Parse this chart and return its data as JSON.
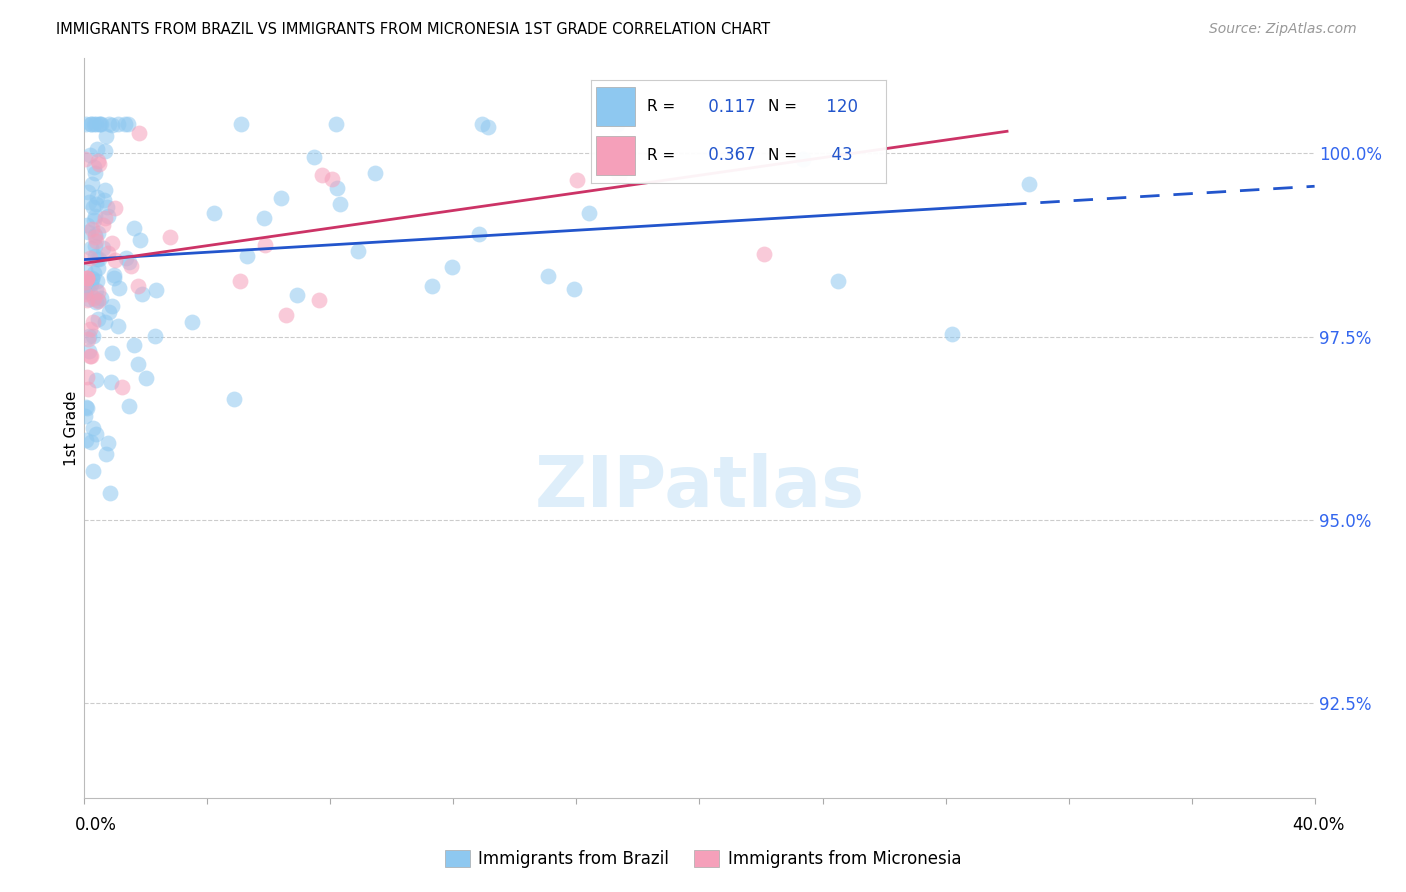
{
  "title": "IMMIGRANTS FROM BRAZIL VS IMMIGRANTS FROM MICRONESIA 1ST GRADE CORRELATION CHART",
  "source": "Source: ZipAtlas.com",
  "ylabel": "1st Grade",
  "yticks": [
    92.5,
    95.0,
    97.5,
    100.0
  ],
  "ytick_labels": [
    "92.5%",
    "95.0%",
    "97.5%",
    "100.0%"
  ],
  "xmin": 0.0,
  "xmax": 40.0,
  "ymin": 91.2,
  "ymax": 101.3,
  "brazil_R": 0.117,
  "brazil_N": 120,
  "micronesia_R": 0.367,
  "micronesia_N": 43,
  "brazil_color": "#8EC8F0",
  "micronesia_color": "#F5A0BA",
  "brazil_line_color": "#2255CC",
  "micronesia_line_color": "#CC3366",
  "legend_label_brazil": "Immigrants from Brazil",
  "legend_label_micronesia": "Immigrants from Micronesia",
  "brazil_line_x0": 0.0,
  "brazil_line_y0": 98.55,
  "brazil_line_x1": 40.0,
  "brazil_line_y1": 99.55,
  "brazil_solid_end": 30.0,
  "micronesia_line_x0": 0.0,
  "micronesia_line_y0": 98.5,
  "micronesia_line_x1": 30.0,
  "micronesia_line_y1": 100.3,
  "watermark_text": "ZIPatlas",
  "watermark_color": "#D0E8F8",
  "xtick_positions": [
    0,
    4,
    8,
    12,
    16,
    20,
    24,
    28,
    32,
    36,
    40
  ]
}
